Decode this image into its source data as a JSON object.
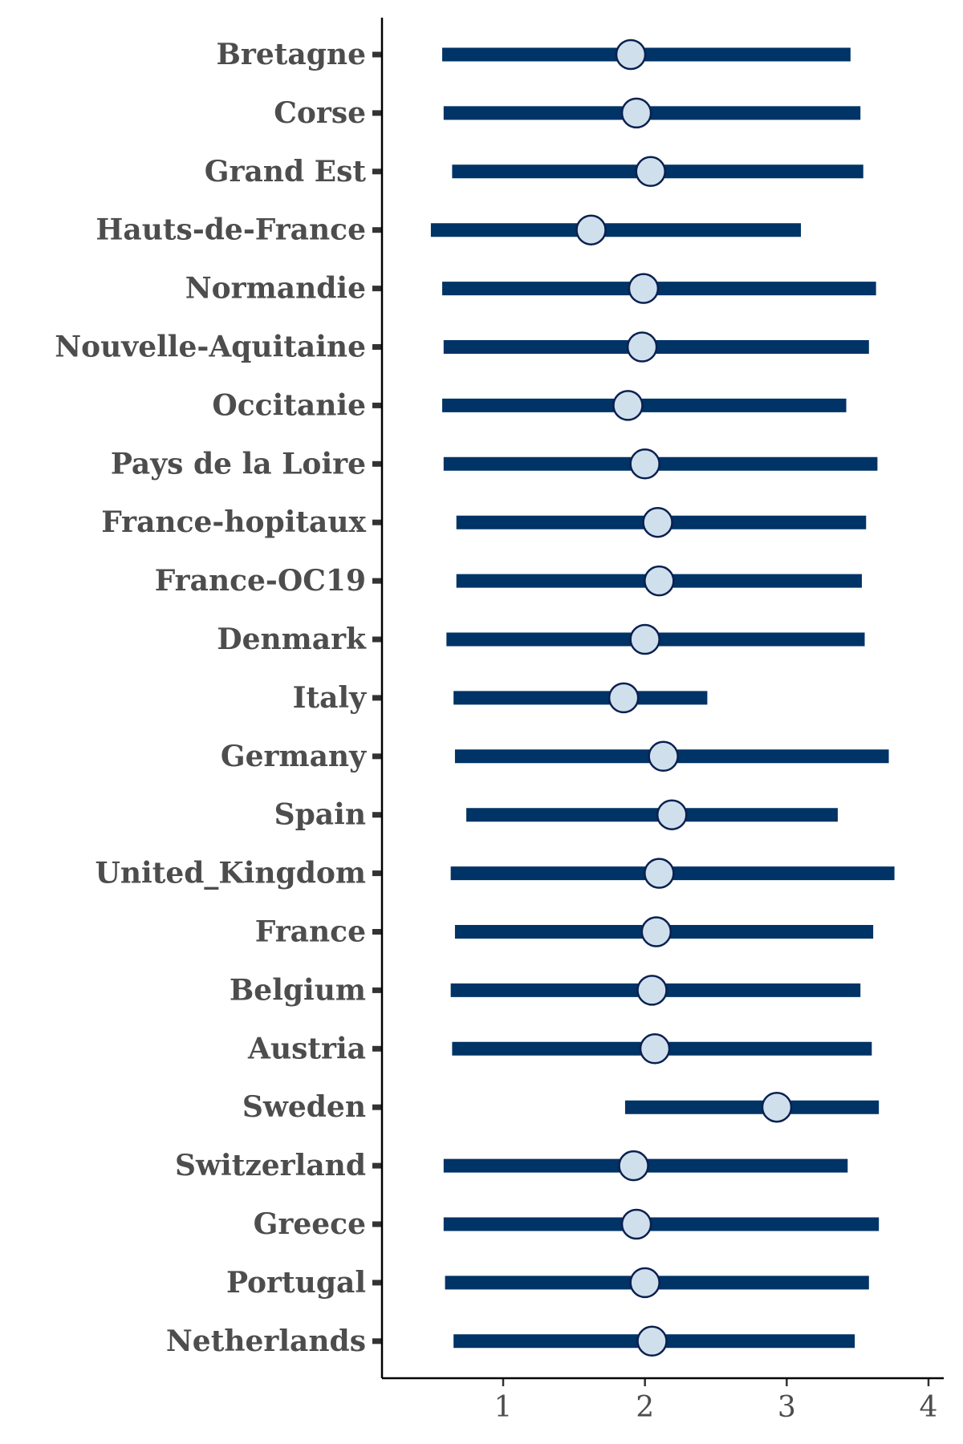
{
  "chart_data": {
    "type": "forest",
    "title": "",
    "xlabel": "",
    "ylabel": "",
    "xlim": [
      0.2,
      4.1
    ],
    "x_ticks": [
      1,
      2,
      3,
      4
    ],
    "x_tick_labels": [
      "1",
      "2",
      "3",
      "4"
    ],
    "grid": false,
    "legend": "none",
    "categories": [
      "Bretagne",
      "Corse",
      "Grand Est",
      "Hauts-de-France",
      "Normandie",
      "Nouvelle-Aquitaine",
      "Occitanie",
      "Pays de la Loire",
      "France-hopitaux",
      "France-OC19",
      "Denmark",
      "Italy",
      "Germany",
      "Spain",
      "United_Kingdom",
      "France",
      "Belgium",
      "Austria",
      "Sweden",
      "Switzerland",
      "Greece",
      "Portugal",
      "Netherlands"
    ],
    "estimates": [
      1.9,
      1.94,
      2.04,
      1.62,
      1.99,
      1.98,
      1.88,
      2.0,
      2.09,
      2.1,
      2.0,
      1.85,
      2.13,
      2.19,
      2.1,
      2.08,
      2.05,
      2.07,
      2.93,
      1.92,
      1.94,
      2.0,
      2.05
    ],
    "lower": [
      0.57,
      0.58,
      0.64,
      0.49,
      0.57,
      0.58,
      0.57,
      0.58,
      0.67,
      0.67,
      0.6,
      0.65,
      0.66,
      0.74,
      0.63,
      0.66,
      0.63,
      0.64,
      1.86,
      0.58,
      0.58,
      0.59,
      0.65
    ],
    "upper": [
      3.45,
      3.52,
      3.54,
      3.1,
      3.63,
      3.58,
      3.42,
      3.64,
      3.56,
      3.53,
      3.55,
      2.44,
      3.72,
      3.36,
      3.76,
      3.61,
      3.52,
      3.6,
      3.65,
      3.43,
      3.65,
      3.58,
      3.48
    ],
    "colors": {
      "interval": "#003366",
      "point_fill": "#cfe0ec",
      "point_stroke": "#0a2050",
      "label": "#4d4d4d"
    }
  }
}
